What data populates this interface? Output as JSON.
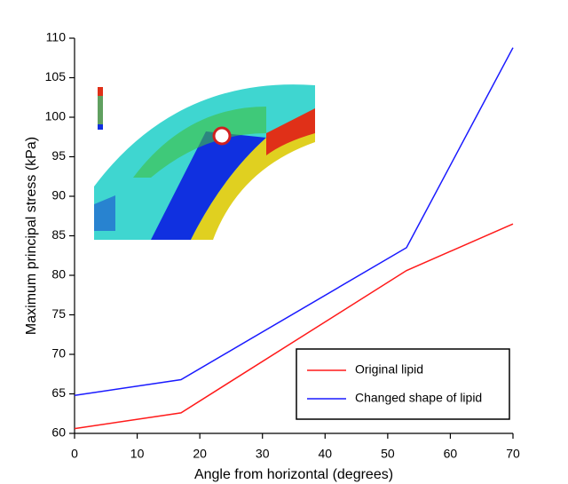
{
  "chart_data": {
    "type": "line",
    "x_label": "Angle from horizontal (degrees)",
    "y_label": "Maximum principal stress (kPa)",
    "series": [
      {
        "name": "Original lipid",
        "color": "#ff1a1a",
        "x": [
          0,
          17,
          53,
          70
        ],
        "values": [
          60.6,
          62.6,
          80.6,
          86.5
        ]
      },
      {
        "name": "Changed shape of lipid",
        "color": "#1a1aff",
        "x": [
          0,
          17,
          53,
          70
        ],
        "values": [
          64.8,
          66.8,
          83.5,
          108.8
        ]
      }
    ],
    "xlim": [
      0,
      70
    ],
    "xticks": [
      0,
      10,
      20,
      30,
      40,
      50,
      60,
      70
    ],
    "ylim": [
      60,
      110
    ],
    "yticks": [
      60,
      65,
      70,
      75,
      80,
      85,
      90,
      95,
      100,
      105,
      110
    ],
    "legend": "lower-right"
  }
}
